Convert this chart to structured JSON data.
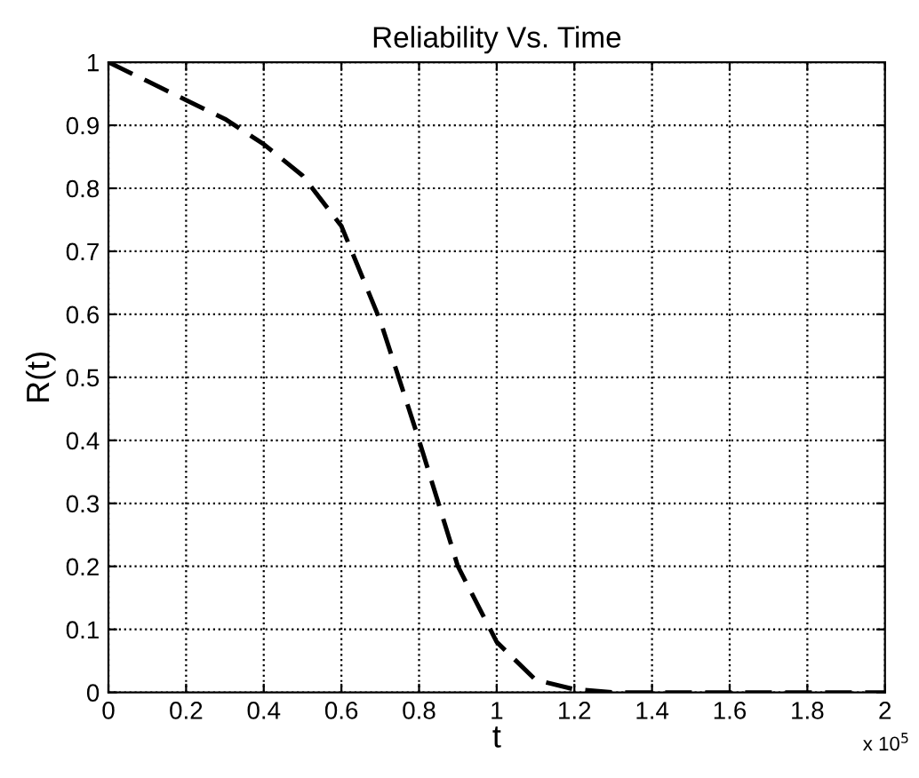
{
  "chart_data": {
    "type": "line",
    "title": "Reliability Vs. Time",
    "xlabel": "t",
    "ylabel": "R(t)",
    "x": [
      0,
      0.1,
      0.2,
      0.3,
      0.4,
      0.5,
      0.6,
      0.7,
      0.8,
      0.9,
      1.0,
      1.1,
      1.2,
      1.3,
      1.4,
      1.5,
      1.6,
      1.7,
      1.8,
      1.9,
      2.0
    ],
    "series": [
      {
        "color": "#000000",
        "values": [
          1,
          0.97,
          0.94,
          0.91,
          0.87,
          0.82,
          0.74,
          0.59,
          0.4,
          0.2,
          0.08,
          0.02,
          0.005,
          0,
          0,
          0,
          0,
          0,
          0,
          0,
          0
        ]
      }
    ],
    "line_style": "dashed",
    "marker": "none",
    "grid": true,
    "xlim": [
      0,
      2
    ],
    "xticks": [
      0,
      0.2,
      0.4,
      0.6,
      0.8,
      1,
      1.2,
      1.4,
      1.6,
      1.8,
      2
    ],
    "ylim": [
      0,
      1
    ],
    "yticks": [
      0,
      0.1,
      0.2,
      0.3,
      0.4,
      0.5,
      0.6,
      0.7,
      0.8,
      0.9,
      1
    ],
    "annotations": [
      "x 10$^{5}$"
    ]
  }
}
